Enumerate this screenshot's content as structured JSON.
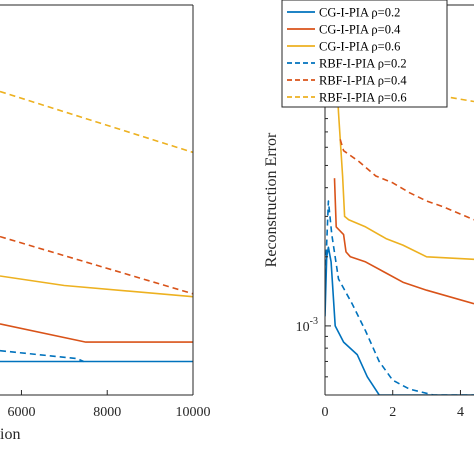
{
  "chart_data": [
    {
      "type": "line",
      "xlabel": "ion",
      "ylabel": "",
      "xlim": [
        5500,
        10000
      ],
      "yscale": "log",
      "x_ticks": [
        "6000",
        "8000",
        "10000"
      ],
      "legend": {
        "placement": "top-right",
        "entries": [
          {
            "label": "CG-I-PIA ρ=0.2",
            "color": "#0072BD",
            "dash": "solid"
          },
          {
            "label": "CG-I-PIA ρ=0.4",
            "color": "#D95319",
            "dash": "solid"
          },
          {
            "label": "CG-I-PIA ρ=0.6",
            "color": "#EDB120",
            "dash": "solid"
          },
          {
            "label": "RBF-I-PIA ρ=0.2",
            "color": "#0072BD",
            "dash": "dashed"
          },
          {
            "label": "RBF-I-PIA ρ=0.4",
            "color": "#D95319",
            "dash": "dashed"
          },
          {
            "label": "RBF-I-PIA ρ=0.6",
            "color": "#EDB120",
            "dash": "dashed"
          }
        ]
      },
      "series": [
        {
          "color": "#EDB120",
          "dash": "dashed",
          "x": [
            5500,
            10000
          ],
          "y": [
            0.0105,
            0.0057
          ]
        },
        {
          "color": "#D95319",
          "dash": "dashed",
          "x": [
            5500,
            10000
          ],
          "y": [
            0.00245,
            0.00138
          ]
        },
        {
          "color": "#EDB120",
          "dash": "solid",
          "x": [
            5500,
            7000,
            10000
          ],
          "y": [
            0.00165,
            0.0015,
            0.00134
          ]
        },
        {
          "color": "#D95319",
          "dash": "solid",
          "x": [
            5500,
            7500,
            10000
          ],
          "y": [
            0.00102,
            0.00085,
            0.00085
          ]
        },
        {
          "color": "#0072BD",
          "dash": "dashed",
          "x": [
            5500,
            7300,
            7450
          ],
          "y": [
            0.00078,
            0.00072,
            0.0007
          ]
        },
        {
          "color": "#0072BD",
          "dash": "solid",
          "x": [
            5500,
            10000
          ],
          "y": [
            0.0007,
            0.0007
          ]
        }
      ]
    },
    {
      "type": "line",
      "xlabel": "",
      "ylabel": "Reconstruction Error",
      "xlim": [
        0,
        4.4
      ],
      "ylim": [
        0.0005,
        0.025
      ],
      "yscale": "log",
      "x_ticks": [
        "0",
        "2",
        "4"
      ],
      "x_tick_values": [
        0,
        2,
        4
      ],
      "y_ticks": [
        {
          "value": 0.01,
          "base": "10",
          "exp": "-2"
        },
        {
          "value": 0.001,
          "base": "10",
          "exp": "-3"
        }
      ],
      "series": [
        {
          "color": "#EDB120",
          "dash": "dashed",
          "x": [
            0.36,
            0.45,
            0.8,
            1.3,
            1.8,
            2.3,
            2.5,
            3.0,
            3.5,
            4.4
          ],
          "y": [
            0.025,
            0.0195,
            0.0168,
            0.0155,
            0.0148,
            0.014,
            0.0122,
            0.011,
            0.01,
            0.0095
          ]
        },
        {
          "color": "#EDB120",
          "dash": "solid",
          "x": [
            0.35,
            0.4,
            0.52,
            0.58,
            0.7,
            1.2,
            1.8,
            2.3,
            3.0,
            4.4
          ],
          "y": [
            0.0118,
            0.0085,
            0.0045,
            0.003,
            0.0029,
            0.0027,
            0.0024,
            0.00225,
            0.002,
            0.00195
          ]
        },
        {
          "color": "#D95319",
          "dash": "dashed",
          "x": [
            0.45,
            0.55,
            1.0,
            1.5,
            2.0,
            2.5,
            3.0,
            3.5,
            4.4
          ],
          "y": [
            0.0065,
            0.0058,
            0.0052,
            0.0045,
            0.0042,
            0.0038,
            0.0035,
            0.0033,
            0.0029
          ]
        },
        {
          "color": "#D95319",
          "dash": "solid",
          "x": [
            0.28,
            0.33,
            0.55,
            0.62,
            0.75,
            1.2,
            1.8,
            2.3,
            3.0,
            4.4
          ],
          "y": [
            0.0044,
            0.0027,
            0.0025,
            0.0021,
            0.002,
            0.0019,
            0.0017,
            0.00155,
            0.00143,
            0.00125
          ]
        },
        {
          "color": "#0072BD",
          "dash": "dashed",
          "x": [
            0.0,
            0.1,
            0.2,
            0.4,
            0.8,
            1.2,
            1.6,
            2.0,
            2.5,
            3.2,
            4.4
          ],
          "y": [
            0.0015,
            0.0035,
            0.0025,
            0.0016,
            0.00125,
            0.00095,
            0.0007,
            0.00058,
            0.00053,
            0.0005,
            0.0005
          ]
        },
        {
          "color": "#0072BD",
          "dash": "solid",
          "x": [
            0.0,
            0.05,
            0.1,
            0.18,
            0.3,
            0.55,
            0.95,
            1.25,
            1.6,
            4.4
          ],
          "y": [
            0.0011,
            0.002,
            0.0022,
            0.0019,
            0.001,
            0.00085,
            0.00075,
            0.0006,
            0.0005,
            0.0005
          ]
        }
      ]
    }
  ]
}
